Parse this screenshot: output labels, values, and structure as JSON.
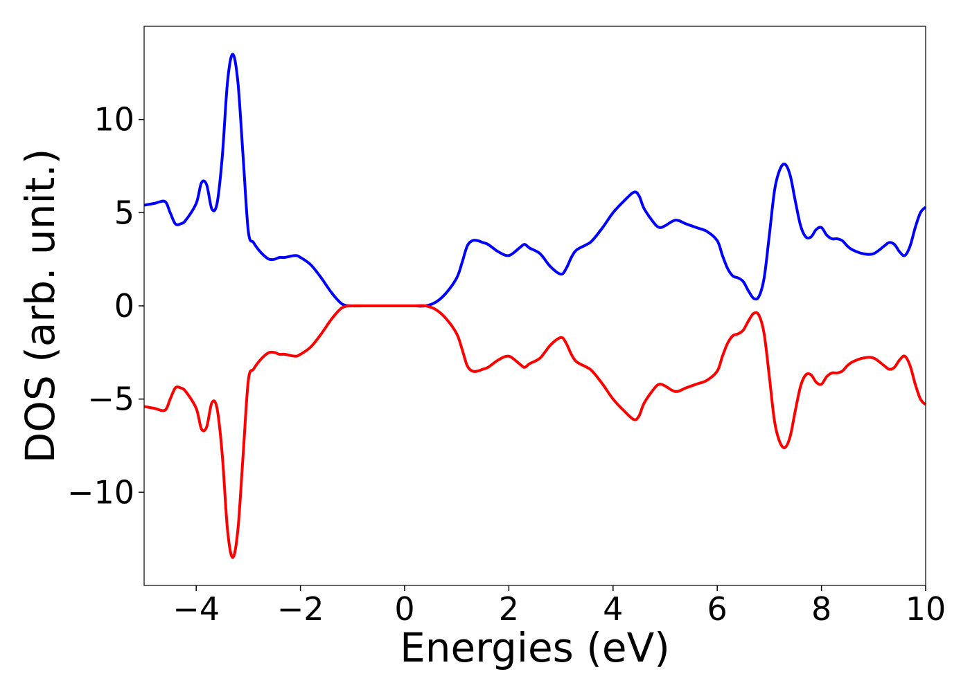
{
  "chart_data": {
    "type": "line",
    "title": "",
    "xlabel": "Energies (eV)",
    "ylabel": "DOS (arb. unit.)",
    "xlim": [
      -5,
      10
    ],
    "ylim": [
      -15,
      15
    ],
    "grid": false,
    "legend": "none",
    "x_ticks": [
      -4,
      -2,
      0,
      2,
      4,
      6,
      8,
      10
    ],
    "x_tick_labels": [
      "−4",
      "−2",
      "0",
      "2",
      "4",
      "6",
      "8",
      "10"
    ],
    "y_ticks": [
      -10,
      -5,
      0,
      5,
      10
    ],
    "y_tick_labels": [
      "−10",
      "−5",
      "0",
      "5",
      "10"
    ],
    "series": [
      {
        "color": "#0000ff",
        "x": [
          -5.0,
          -4.8,
          -4.6,
          -4.5,
          -4.4,
          -4.3,
          -4.2,
          -4.0,
          -3.9,
          -3.8,
          -3.7,
          -3.6,
          -3.5,
          -3.4,
          -3.3,
          -3.2,
          -3.1,
          -3.0,
          -2.9,
          -2.8,
          -2.7,
          -2.6,
          -2.5,
          -2.4,
          -2.3,
          -2.1,
          -2.0,
          -1.8,
          -1.6,
          -1.4,
          -1.2,
          -1.0,
          -0.8,
          -0.6,
          -0.4,
          -0.2,
          0.0,
          0.2,
          0.4,
          0.6,
          0.8,
          1.0,
          1.1,
          1.2,
          1.3,
          1.4,
          1.5,
          1.6,
          1.8,
          2.0,
          2.2,
          2.3,
          2.4,
          2.6,
          2.8,
          3.0,
          3.1,
          3.2,
          3.3,
          3.5,
          3.6,
          3.8,
          4.0,
          4.2,
          4.4,
          4.5,
          4.6,
          4.8,
          4.9,
          5.0,
          5.2,
          5.4,
          5.6,
          5.8,
          6.0,
          6.1,
          6.2,
          6.3,
          6.4,
          6.5,
          6.6,
          6.7,
          6.8,
          6.9,
          7.0,
          7.1,
          7.2,
          7.3,
          7.4,
          7.5,
          7.6,
          7.7,
          7.8,
          7.9,
          8.0,
          8.1,
          8.2,
          8.3,
          8.4,
          8.5,
          8.6,
          8.8,
          9.0,
          9.2,
          9.3,
          9.4,
          9.5,
          9.6,
          9.7,
          9.8,
          9.9,
          10.0
        ],
        "y": [
          5.4,
          5.5,
          5.6,
          5.0,
          4.4,
          4.4,
          4.6,
          5.5,
          6.6,
          6.5,
          5.2,
          5.5,
          8.0,
          12.0,
          13.5,
          12.0,
          8.0,
          4.0,
          3.4,
          3.0,
          2.7,
          2.5,
          2.5,
          2.6,
          2.6,
          2.7,
          2.6,
          2.2,
          1.5,
          0.7,
          0.1,
          0.0,
          0.0,
          0.0,
          0.0,
          0.0,
          0.0,
          0.0,
          0.0,
          0.2,
          0.7,
          1.5,
          2.3,
          3.2,
          3.5,
          3.5,
          3.4,
          3.3,
          2.9,
          2.7,
          3.1,
          3.3,
          3.1,
          2.8,
          2.1,
          1.7,
          2.0,
          2.6,
          3.0,
          3.3,
          3.5,
          4.2,
          5.0,
          5.6,
          6.1,
          5.9,
          5.2,
          4.4,
          4.2,
          4.3,
          4.6,
          4.4,
          4.2,
          4.0,
          3.5,
          2.7,
          2.0,
          1.6,
          1.5,
          1.3,
          0.8,
          0.4,
          0.5,
          1.5,
          3.8,
          6.2,
          7.3,
          7.6,
          7.0,
          5.6,
          4.3,
          3.7,
          3.7,
          4.1,
          4.2,
          3.8,
          3.6,
          3.6,
          3.5,
          3.2,
          3.0,
          2.8,
          2.8,
          3.2,
          3.4,
          3.3,
          2.9,
          2.7,
          3.2,
          4.2,
          5.0,
          5.3
        ]
      },
      {
        "color": "#ff0000",
        "x": [
          -5.0,
          -4.8,
          -4.6,
          -4.5,
          -4.4,
          -4.3,
          -4.2,
          -4.0,
          -3.9,
          -3.8,
          -3.7,
          -3.6,
          -3.5,
          -3.4,
          -3.3,
          -3.2,
          -3.1,
          -3.0,
          -2.9,
          -2.8,
          -2.7,
          -2.6,
          -2.5,
          -2.4,
          -2.3,
          -2.1,
          -2.0,
          -1.8,
          -1.6,
          -1.4,
          -1.2,
          -1.0,
          -0.8,
          -0.6,
          -0.4,
          -0.2,
          0.0,
          0.2,
          0.4,
          0.6,
          0.8,
          1.0,
          1.1,
          1.2,
          1.3,
          1.4,
          1.5,
          1.6,
          1.8,
          2.0,
          2.2,
          2.3,
          2.4,
          2.6,
          2.8,
          3.0,
          3.1,
          3.2,
          3.3,
          3.5,
          3.6,
          3.8,
          4.0,
          4.2,
          4.4,
          4.5,
          4.6,
          4.8,
          4.9,
          5.0,
          5.2,
          5.4,
          5.6,
          5.8,
          6.0,
          6.1,
          6.2,
          6.3,
          6.4,
          6.5,
          6.6,
          6.7,
          6.8,
          6.9,
          7.0,
          7.1,
          7.2,
          7.3,
          7.4,
          7.5,
          7.6,
          7.7,
          7.8,
          7.9,
          8.0,
          8.1,
          8.2,
          8.3,
          8.4,
          8.5,
          8.6,
          8.8,
          9.0,
          9.2,
          9.3,
          9.4,
          9.5,
          9.6,
          9.7,
          9.8,
          9.9,
          10.0
        ],
        "y": [
          -5.4,
          -5.5,
          -5.6,
          -5.0,
          -4.4,
          -4.4,
          -4.6,
          -5.5,
          -6.6,
          -6.5,
          -5.2,
          -5.5,
          -8.0,
          -12.0,
          -13.5,
          -12.0,
          -8.0,
          -4.0,
          -3.4,
          -3.0,
          -2.7,
          -2.5,
          -2.5,
          -2.6,
          -2.6,
          -2.7,
          -2.6,
          -2.2,
          -1.5,
          -0.7,
          -0.1,
          0.0,
          0.0,
          0.0,
          0.0,
          0.0,
          0.0,
          0.0,
          0.0,
          -0.2,
          -0.7,
          -1.5,
          -2.3,
          -3.2,
          -3.5,
          -3.5,
          -3.4,
          -3.3,
          -2.9,
          -2.7,
          -3.1,
          -3.3,
          -3.1,
          -2.8,
          -2.1,
          -1.7,
          -2.0,
          -2.6,
          -3.0,
          -3.3,
          -3.5,
          -4.2,
          -5.0,
          -5.6,
          -6.1,
          -5.9,
          -5.2,
          -4.4,
          -4.2,
          -4.3,
          -4.6,
          -4.4,
          -4.2,
          -4.0,
          -3.5,
          -2.7,
          -2.0,
          -1.6,
          -1.5,
          -1.3,
          -0.8,
          -0.4,
          -0.5,
          -1.5,
          -3.8,
          -6.2,
          -7.3,
          -7.6,
          -7.0,
          -5.6,
          -4.3,
          -3.7,
          -3.7,
          -4.1,
          -4.2,
          -3.8,
          -3.6,
          -3.6,
          -3.5,
          -3.2,
          -3.0,
          -2.8,
          -2.8,
          -3.2,
          -3.4,
          -3.3,
          -2.9,
          -2.7,
          -3.2,
          -4.2,
          -5.0,
          -5.3
        ]
      }
    ]
  }
}
